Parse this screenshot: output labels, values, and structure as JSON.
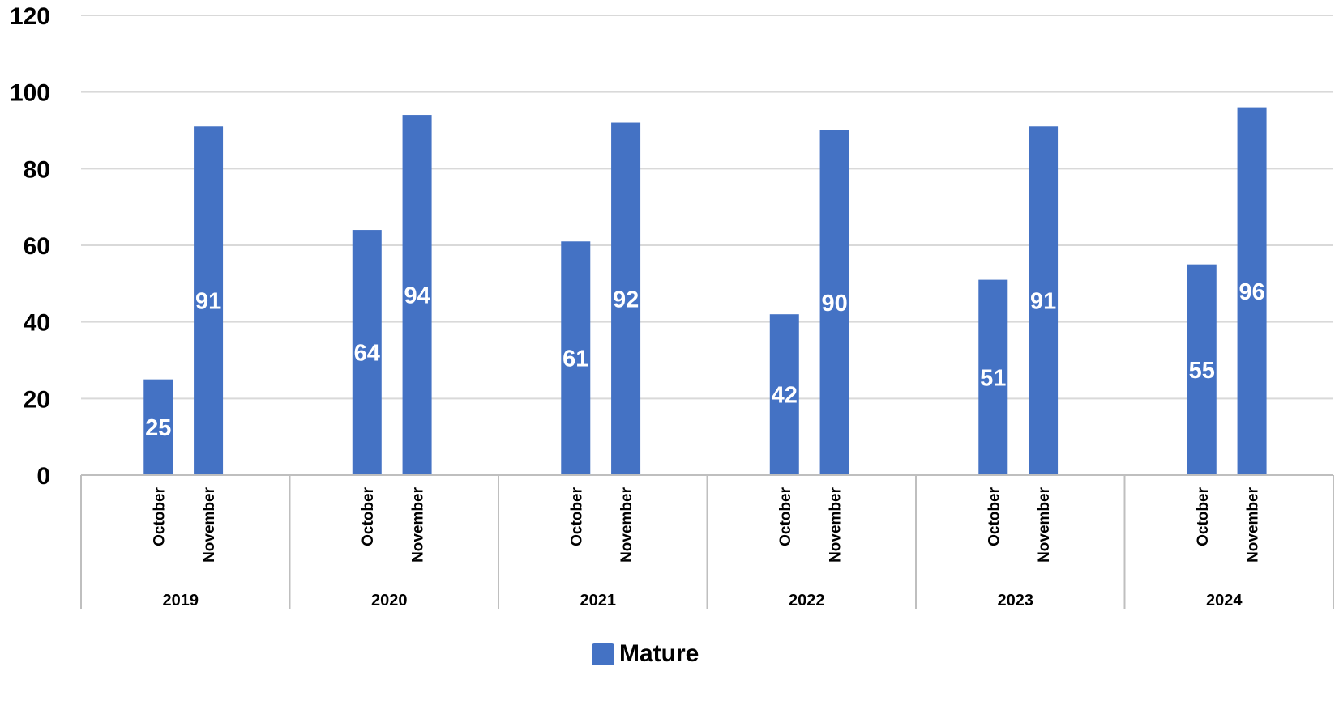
{
  "chart_data": {
    "type": "bar",
    "title": "",
    "xlabel": "",
    "ylabel": "",
    "ylim": [
      0,
      120
    ],
    "yticks": [
      0,
      20,
      40,
      60,
      80,
      100,
      120
    ],
    "grid": true,
    "legend_position": "bottom",
    "groups": [
      {
        "label": "2019",
        "categories": [
          "October",
          "November"
        ],
        "values": [
          25,
          91
        ]
      },
      {
        "label": "2020",
        "categories": [
          "October",
          "November"
        ],
        "values": [
          64,
          94
        ]
      },
      {
        "label": "2021",
        "categories": [
          "October",
          "November"
        ],
        "values": [
          61,
          92
        ]
      },
      {
        "label": "2022",
        "categories": [
          "October",
          "November"
        ],
        "values": [
          42,
          90
        ]
      },
      {
        "label": "2023",
        "categories": [
          "October",
          "November"
        ],
        "values": [
          51,
          91
        ]
      },
      {
        "label": "2024",
        "categories": [
          "October",
          "November"
        ],
        "values": [
          55,
          96
        ]
      }
    ],
    "series": [
      {
        "name": "Mature",
        "color": "#4472C4"
      }
    ]
  }
}
